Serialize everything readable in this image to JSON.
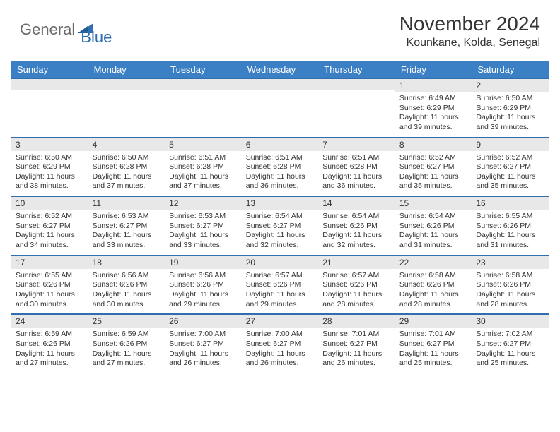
{
  "logo": {
    "general": "General",
    "blue": "Blue"
  },
  "title": "November 2024",
  "location": "Kounkane, Kolda, Senegal",
  "colors": {
    "header_bg": "#3b7fc4",
    "header_text": "#ffffff",
    "daynum_bg": "#e8e8e8",
    "border": "#2f6fb0",
    "text": "#333333",
    "logo_gray": "#6a6a6a",
    "logo_blue": "#2f6fb0"
  },
  "day_names": [
    "Sunday",
    "Monday",
    "Tuesday",
    "Wednesday",
    "Thursday",
    "Friday",
    "Saturday"
  ],
  "weeks": [
    [
      {
        "n": "",
        "sr": "",
        "ss": "",
        "dl": ""
      },
      {
        "n": "",
        "sr": "",
        "ss": "",
        "dl": ""
      },
      {
        "n": "",
        "sr": "",
        "ss": "",
        "dl": ""
      },
      {
        "n": "",
        "sr": "",
        "ss": "",
        "dl": ""
      },
      {
        "n": "",
        "sr": "",
        "ss": "",
        "dl": ""
      },
      {
        "n": "1",
        "sr": "Sunrise: 6:49 AM",
        "ss": "Sunset: 6:29 PM",
        "dl": "Daylight: 11 hours and 39 minutes."
      },
      {
        "n": "2",
        "sr": "Sunrise: 6:50 AM",
        "ss": "Sunset: 6:29 PM",
        "dl": "Daylight: 11 hours and 39 minutes."
      }
    ],
    [
      {
        "n": "3",
        "sr": "Sunrise: 6:50 AM",
        "ss": "Sunset: 6:29 PM",
        "dl": "Daylight: 11 hours and 38 minutes."
      },
      {
        "n": "4",
        "sr": "Sunrise: 6:50 AM",
        "ss": "Sunset: 6:28 PM",
        "dl": "Daylight: 11 hours and 37 minutes."
      },
      {
        "n": "5",
        "sr": "Sunrise: 6:51 AM",
        "ss": "Sunset: 6:28 PM",
        "dl": "Daylight: 11 hours and 37 minutes."
      },
      {
        "n": "6",
        "sr": "Sunrise: 6:51 AM",
        "ss": "Sunset: 6:28 PM",
        "dl": "Daylight: 11 hours and 36 minutes."
      },
      {
        "n": "7",
        "sr": "Sunrise: 6:51 AM",
        "ss": "Sunset: 6:28 PM",
        "dl": "Daylight: 11 hours and 36 minutes."
      },
      {
        "n": "8",
        "sr": "Sunrise: 6:52 AM",
        "ss": "Sunset: 6:27 PM",
        "dl": "Daylight: 11 hours and 35 minutes."
      },
      {
        "n": "9",
        "sr": "Sunrise: 6:52 AM",
        "ss": "Sunset: 6:27 PM",
        "dl": "Daylight: 11 hours and 35 minutes."
      }
    ],
    [
      {
        "n": "10",
        "sr": "Sunrise: 6:52 AM",
        "ss": "Sunset: 6:27 PM",
        "dl": "Daylight: 11 hours and 34 minutes."
      },
      {
        "n": "11",
        "sr": "Sunrise: 6:53 AM",
        "ss": "Sunset: 6:27 PM",
        "dl": "Daylight: 11 hours and 33 minutes."
      },
      {
        "n": "12",
        "sr": "Sunrise: 6:53 AM",
        "ss": "Sunset: 6:27 PM",
        "dl": "Daylight: 11 hours and 33 minutes."
      },
      {
        "n": "13",
        "sr": "Sunrise: 6:54 AM",
        "ss": "Sunset: 6:27 PM",
        "dl": "Daylight: 11 hours and 32 minutes."
      },
      {
        "n": "14",
        "sr": "Sunrise: 6:54 AM",
        "ss": "Sunset: 6:26 PM",
        "dl": "Daylight: 11 hours and 32 minutes."
      },
      {
        "n": "15",
        "sr": "Sunrise: 6:54 AM",
        "ss": "Sunset: 6:26 PM",
        "dl": "Daylight: 11 hours and 31 minutes."
      },
      {
        "n": "16",
        "sr": "Sunrise: 6:55 AM",
        "ss": "Sunset: 6:26 PM",
        "dl": "Daylight: 11 hours and 31 minutes."
      }
    ],
    [
      {
        "n": "17",
        "sr": "Sunrise: 6:55 AM",
        "ss": "Sunset: 6:26 PM",
        "dl": "Daylight: 11 hours and 30 minutes."
      },
      {
        "n": "18",
        "sr": "Sunrise: 6:56 AM",
        "ss": "Sunset: 6:26 PM",
        "dl": "Daylight: 11 hours and 30 minutes."
      },
      {
        "n": "19",
        "sr": "Sunrise: 6:56 AM",
        "ss": "Sunset: 6:26 PM",
        "dl": "Daylight: 11 hours and 29 minutes."
      },
      {
        "n": "20",
        "sr": "Sunrise: 6:57 AM",
        "ss": "Sunset: 6:26 PM",
        "dl": "Daylight: 11 hours and 29 minutes."
      },
      {
        "n": "21",
        "sr": "Sunrise: 6:57 AM",
        "ss": "Sunset: 6:26 PM",
        "dl": "Daylight: 11 hours and 28 minutes."
      },
      {
        "n": "22",
        "sr": "Sunrise: 6:58 AM",
        "ss": "Sunset: 6:26 PM",
        "dl": "Daylight: 11 hours and 28 minutes."
      },
      {
        "n": "23",
        "sr": "Sunrise: 6:58 AM",
        "ss": "Sunset: 6:26 PM",
        "dl": "Daylight: 11 hours and 28 minutes."
      }
    ],
    [
      {
        "n": "24",
        "sr": "Sunrise: 6:59 AM",
        "ss": "Sunset: 6:26 PM",
        "dl": "Daylight: 11 hours and 27 minutes."
      },
      {
        "n": "25",
        "sr": "Sunrise: 6:59 AM",
        "ss": "Sunset: 6:26 PM",
        "dl": "Daylight: 11 hours and 27 minutes."
      },
      {
        "n": "26",
        "sr": "Sunrise: 7:00 AM",
        "ss": "Sunset: 6:27 PM",
        "dl": "Daylight: 11 hours and 26 minutes."
      },
      {
        "n": "27",
        "sr": "Sunrise: 7:00 AM",
        "ss": "Sunset: 6:27 PM",
        "dl": "Daylight: 11 hours and 26 minutes."
      },
      {
        "n": "28",
        "sr": "Sunrise: 7:01 AM",
        "ss": "Sunset: 6:27 PM",
        "dl": "Daylight: 11 hours and 26 minutes."
      },
      {
        "n": "29",
        "sr": "Sunrise: 7:01 AM",
        "ss": "Sunset: 6:27 PM",
        "dl": "Daylight: 11 hours and 25 minutes."
      },
      {
        "n": "30",
        "sr": "Sunrise: 7:02 AM",
        "ss": "Sunset: 6:27 PM",
        "dl": "Daylight: 11 hours and 25 minutes."
      }
    ]
  ]
}
